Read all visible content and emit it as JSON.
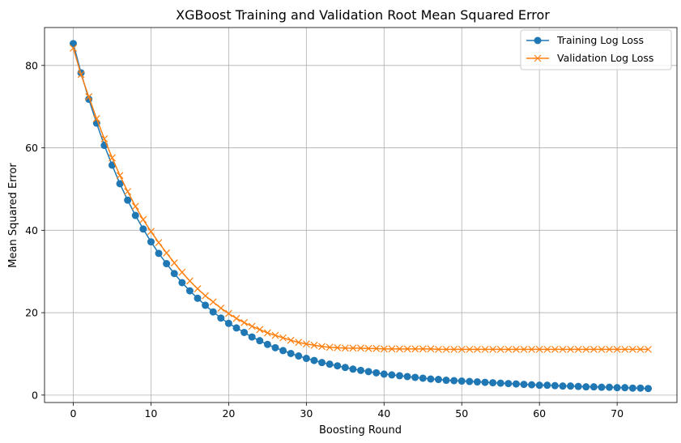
{
  "chart_data": {
    "type": "line",
    "title": "XGBoost Training and Validation Root Mean Squared Error",
    "xlabel": "Boosting Round",
    "ylabel": "Mean Squared Error",
    "xlim": [
      -3.7,
      77.7
    ],
    "ylim": [
      -1.8,
      89.2
    ],
    "xticks": [
      0,
      10,
      20,
      30,
      40,
      50,
      60,
      70
    ],
    "yticks": [
      0,
      20,
      40,
      60,
      80
    ],
    "grid": true,
    "legend_position": "top-right",
    "series": [
      {
        "name": "Training Log Loss",
        "color": "#1f77b4",
        "marker": "circle",
        "x": [
          0,
          1,
          2,
          3,
          4,
          5,
          6,
          7,
          8,
          9,
          10,
          11,
          12,
          13,
          14,
          15,
          16,
          17,
          18,
          19,
          20,
          21,
          22,
          23,
          24,
          25,
          26,
          27,
          28,
          29,
          30,
          31,
          32,
          33,
          34,
          35,
          36,
          37,
          38,
          39,
          40,
          41,
          42,
          43,
          44,
          45,
          46,
          47,
          48,
          49,
          50,
          51,
          52,
          53,
          54,
          55,
          56,
          57,
          58,
          59,
          60,
          61,
          62,
          63,
          64,
          65,
          66,
          67,
          68,
          69,
          70,
          71,
          72,
          73,
          74
        ],
        "values": [
          85.3,
          78.2,
          71.8,
          66.0,
          60.6,
          55.8,
          51.3,
          47.3,
          43.6,
          40.3,
          37.2,
          34.4,
          31.9,
          29.5,
          27.3,
          25.3,
          23.5,
          21.8,
          20.2,
          18.7,
          17.4,
          16.3,
          15.2,
          14.1,
          13.2,
          12.3,
          11.5,
          10.8,
          10.1,
          9.5,
          8.9,
          8.4,
          7.9,
          7.5,
          7.1,
          6.7,
          6.3,
          6.0,
          5.7,
          5.4,
          5.1,
          4.9,
          4.7,
          4.5,
          4.3,
          4.1,
          3.9,
          3.8,
          3.6,
          3.5,
          3.4,
          3.3,
          3.2,
          3.1,
          3.0,
          2.9,
          2.8,
          2.7,
          2.6,
          2.5,
          2.4,
          2.4,
          2.3,
          2.2,
          2.2,
          2.1,
          2.0,
          2.0,
          1.9,
          1.9,
          1.8,
          1.8,
          1.7,
          1.7,
          1.6
        ]
      },
      {
        "name": "Validation Log Loss",
        "color": "#ff7f0e",
        "marker": "x",
        "x": [
          0,
          1,
          2,
          3,
          4,
          5,
          6,
          7,
          8,
          9,
          10,
          11,
          12,
          13,
          14,
          15,
          16,
          17,
          18,
          19,
          20,
          21,
          22,
          23,
          24,
          25,
          26,
          27,
          28,
          29,
          30,
          31,
          32,
          33,
          34,
          35,
          36,
          37,
          38,
          39,
          40,
          41,
          42,
          43,
          44,
          45,
          46,
          47,
          48,
          49,
          50,
          51,
          52,
          53,
          54,
          55,
          56,
          57,
          58,
          59,
          60,
          61,
          62,
          63,
          64,
          65,
          66,
          67,
          68,
          69,
          70,
          71,
          72,
          73,
          74
        ],
        "values": [
          84.2,
          77.8,
          72.4,
          67.1,
          62.2,
          57.6,
          53.3,
          49.4,
          45.8,
          42.6,
          39.7,
          37.0,
          34.5,
          32.1,
          29.8,
          27.7,
          25.8,
          24.1,
          22.6,
          21.1,
          19.8,
          18.6,
          17.6,
          16.7,
          15.9,
          15.1,
          14.5,
          13.9,
          13.3,
          12.8,
          12.4,
          12.1,
          11.8,
          11.6,
          11.5,
          11.4,
          11.4,
          11.4,
          11.3,
          11.3,
          11.2,
          11.2,
          11.2,
          11.2,
          11.2,
          11.2,
          11.2,
          11.1,
          11.1,
          11.1,
          11.1,
          11.1,
          11.1,
          11.1,
          11.1,
          11.1,
          11.1,
          11.1,
          11.1,
          11.1,
          11.1,
          11.1,
          11.1,
          11.1,
          11.1,
          11.1,
          11.1,
          11.1,
          11.1,
          11.1,
          11.1,
          11.1,
          11.1,
          11.1,
          11.1
        ]
      }
    ]
  }
}
